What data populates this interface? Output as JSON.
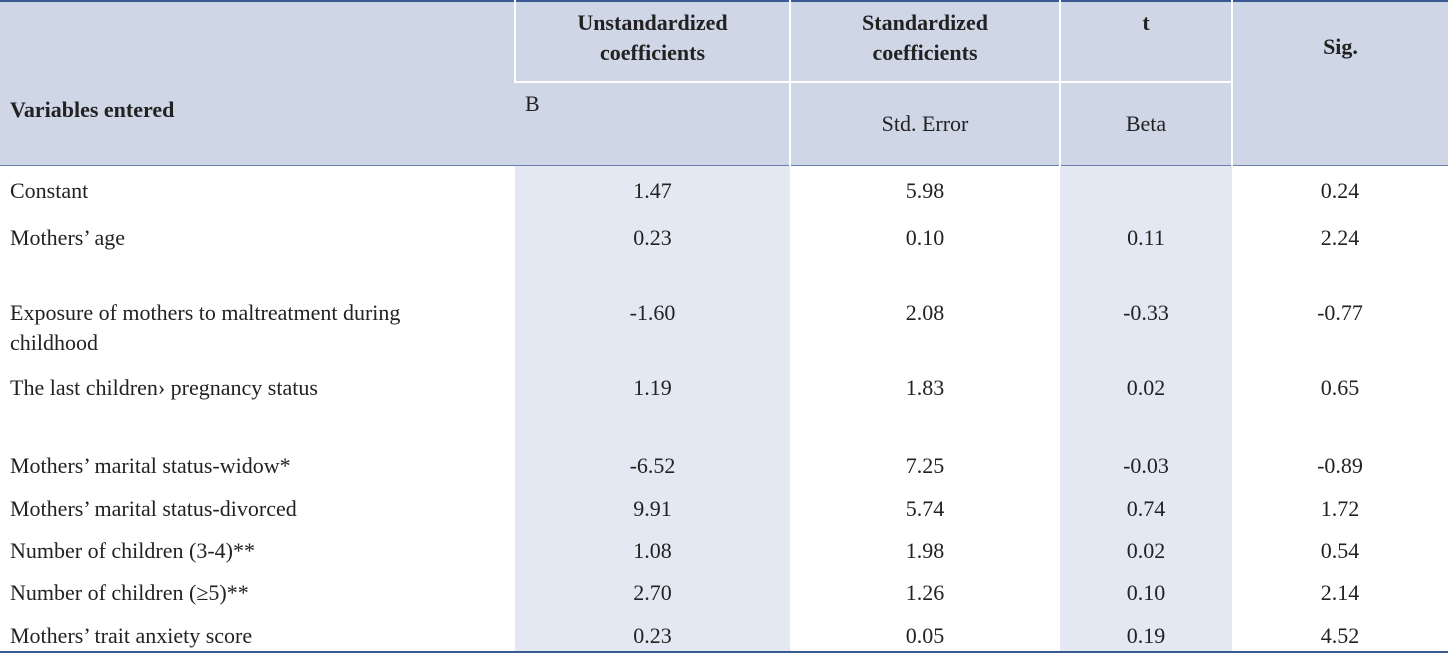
{
  "table": {
    "header": {
      "variables": "Variables entered",
      "unstandardized": "Unstandardized coefficients",
      "standardized": "Standardized coefficients",
      "t": "t",
      "sig": "Sig.",
      "b": "B",
      "std_error": "Std. Error",
      "beta": "Beta"
    },
    "rows": [
      [
        "Constant",
        "1.47",
        "5.98",
        null,
        "0.24"
      ],
      [
        "Mothers’ age",
        "0.23",
        "0.10",
        "0.11",
        "2.24"
      ],
      [
        "Exposure of mothers to maltreatment during childhood",
        "-1.60",
        "2.08",
        "-0.33",
        "-0.77"
      ],
      [
        "The last children› pregnancy status",
        "1.19",
        "1.83",
        "0.02",
        "0.65"
      ],
      [
        "Mothers’ marital status-widow*",
        "-6.52",
        "7.25",
        "-0.03",
        "-0.89"
      ],
      [
        "Mothers’ marital status-divorced",
        "9.91",
        "5.74",
        "0.74",
        "1.72"
      ],
      [
        "Number of children (3-4)**",
        "1.08",
        "1.98",
        "0.02",
        "0.54"
      ],
      [
        "Number of children (≥5)**",
        "2.70",
        "1.26",
        "0.10",
        "2.14"
      ],
      [
        "Mothers’ trait anxiety score",
        "0.23",
        "0.05",
        "0.19",
        "4.52"
      ]
    ]
  }
}
